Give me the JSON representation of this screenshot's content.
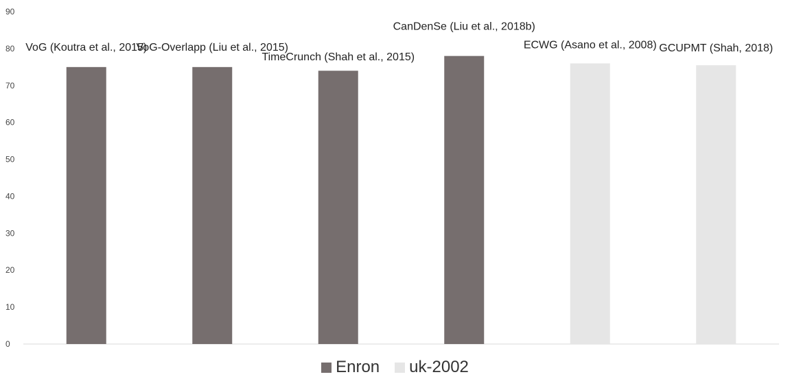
{
  "chart_data": {
    "type": "bar",
    "categories": [
      "VoG (Koutra et al., 2015)",
      "VoG-Overlapp (Liu et al., 2015)",
      "TimeCrunch (Shah et al., 2015)",
      "CanDenSe (Liu et al., 2018b)",
      "ECWG (Asano et al., 2008)",
      "GCUPMT (Shah, 2018)"
    ],
    "values": [
      75,
      75,
      74,
      78,
      76,
      75.5
    ],
    "dataset": [
      "Enron",
      "Enron",
      "Enron",
      "Enron",
      "uk-2002",
      "uk-2002"
    ],
    "ylim": [
      0,
      90
    ],
    "yticks": [
      0,
      10,
      20,
      30,
      40,
      50,
      60,
      70,
      80,
      90
    ],
    "title": "",
    "xlabel": "",
    "ylabel": "",
    "grid": false,
    "legend_position": "bottom-center",
    "legend": [
      {
        "name": "Enron",
        "color": "#766e6e"
      },
      {
        "name": "uk-2002",
        "color": "#e6e6e6"
      }
    ]
  }
}
